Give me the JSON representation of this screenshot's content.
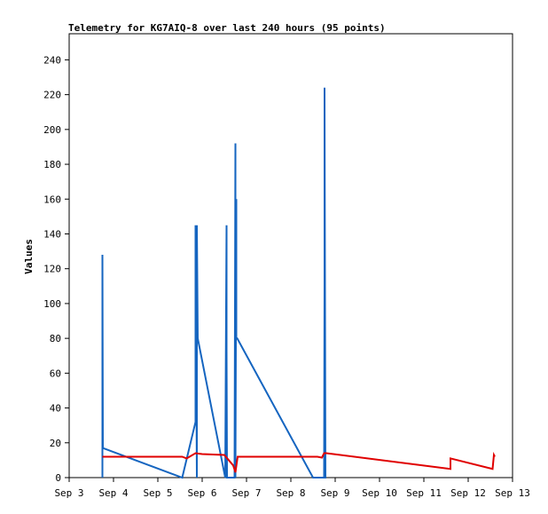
{
  "chart_data": {
    "type": "line",
    "title": "Telemetry for KG7AIQ-8 over last 240 hours (95 points)",
    "xlabel": "",
    "ylabel": "Values",
    "x_ticks": [
      "Sep 3",
      "Sep 4",
      "Sep 5",
      "Sep 6",
      "Sep 7",
      "Sep 8",
      "Sep 9",
      "Sep 10",
      "Sep 11",
      "Sep 12",
      "Sep 13"
    ],
    "xlim": [
      3,
      13
    ],
    "ylim": [
      0,
      255
    ],
    "y_ticks": [
      0,
      20,
      40,
      60,
      80,
      100,
      120,
      140,
      160,
      180,
      200,
      220,
      240
    ],
    "grid": false,
    "series": [
      {
        "color": "#1565c0",
        "x": [
          3.75,
          3.75,
          3.76,
          5.55,
          5.85,
          5.85,
          5.88,
          5.88,
          5.9,
          6.52,
          6.55,
          6.55,
          6.56,
          6.73,
          6.75,
          6.75,
          6.77,
          6.77,
          6.79,
          8.5,
          8.75,
          8.76,
          8.76,
          8.78,
          8.8
        ],
        "y": [
          0,
          128,
          17,
          0,
          32,
          145,
          0,
          145,
          80,
          0,
          145,
          73,
          0,
          0,
          192,
          0,
          160,
          80,
          80,
          0,
          0,
          113,
          224,
          0,
          0
        ]
      },
      {
        "color": "#e00000",
        "x": [
          3.75,
          5.55,
          5.65,
          5.85,
          6.0,
          6.5,
          6.7,
          6.75,
          6.8,
          8.6,
          8.7,
          8.75,
          8.8,
          11.6,
          11.6,
          12.55,
          12.58,
          12.6
        ],
        "y": [
          12,
          12,
          11,
          14,
          13.5,
          13,
          7,
          3,
          12,
          12,
          11.5,
          14,
          14,
          5,
          11,
          5,
          13,
          12
        ]
      }
    ]
  }
}
